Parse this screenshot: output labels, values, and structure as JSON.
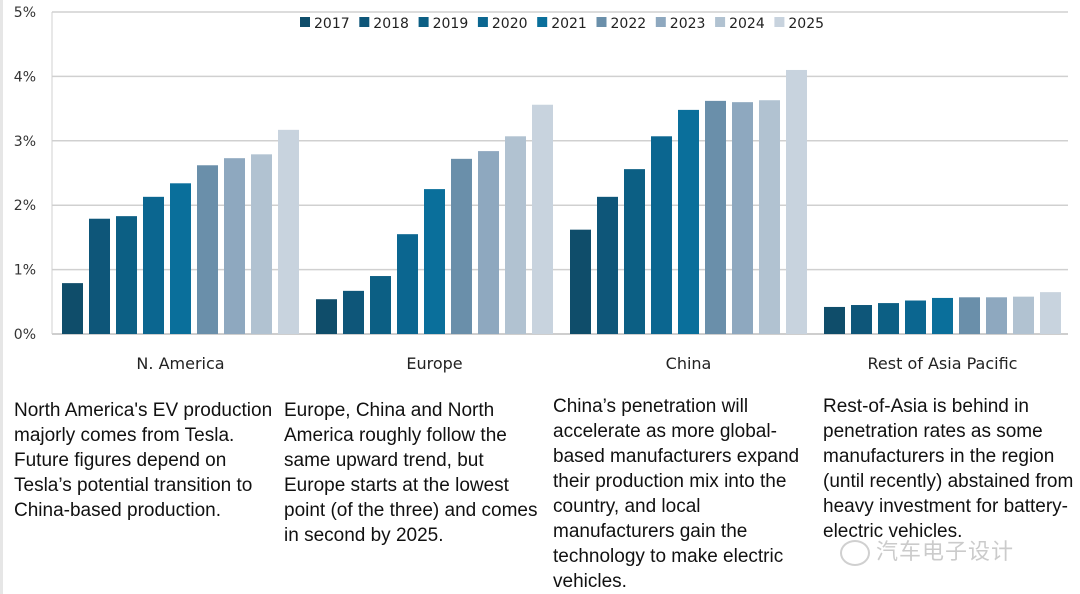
{
  "chart_data": {
    "type": "bar",
    "title": "",
    "xlabel": "",
    "ylabel": "",
    "ylim": [
      0,
      5
    ],
    "yticks": [
      "0%",
      "1%",
      "2%",
      "3%",
      "4%",
      "5%"
    ],
    "grid": true,
    "legend_position": "top-center",
    "categories": [
      "N. America",
      "Europe",
      "China",
      "Rest of Asia Pacific"
    ],
    "series": [
      {
        "name": "2017",
        "color": "#0f4d6a",
        "values": [
          0.79,
          0.54,
          1.62,
          0.42
        ]
      },
      {
        "name": "2018",
        "color": "#0e5679",
        "values": [
          1.79,
          0.67,
          2.13,
          0.45
        ]
      },
      {
        "name": "2019",
        "color": "#0c5f84",
        "values": [
          1.83,
          0.9,
          2.56,
          0.48
        ]
      },
      {
        "name": "2020",
        "color": "#0b6690",
        "values": [
          2.13,
          1.55,
          3.07,
          0.52
        ]
      },
      {
        "name": "2021",
        "color": "#0a6f9b",
        "values": [
          2.34,
          2.25,
          3.48,
          0.56
        ]
      },
      {
        "name": "2022",
        "color": "#6a8faa",
        "values": [
          2.62,
          2.72,
          3.62,
          0.57
        ]
      },
      {
        "name": "2023",
        "color": "#8ea8bf",
        "values": [
          2.73,
          2.84,
          3.6,
          0.57
        ]
      },
      {
        "name": "2024",
        "color": "#b1c2d1",
        "values": [
          2.79,
          3.07,
          3.63,
          0.58
        ]
      },
      {
        "name": "2025",
        "color": "#c8d3de",
        "values": [
          3.17,
          3.56,
          4.1,
          0.65
        ]
      }
    ]
  },
  "notes": [
    "North America's EV production majorly comes from Tesla. Future figures depend on Tesla’s potential transition to China-based production.",
    "Europe, China and North America roughly follow the same upward trend, but Europe starts at the lowest point (of the three) and comes in second by 2025.",
    "China’s penetration will accelerate as more global-based manufacturers expand their production mix into the country, and local manufacturers gain the technology to make electric vehicles.",
    "Rest-of-Asia is behind in penetration rates as some manufacturers in the region (until recently) abstained from heavy investment for battery-electric vehicles."
  ],
  "watermark": "汽车电子设计"
}
